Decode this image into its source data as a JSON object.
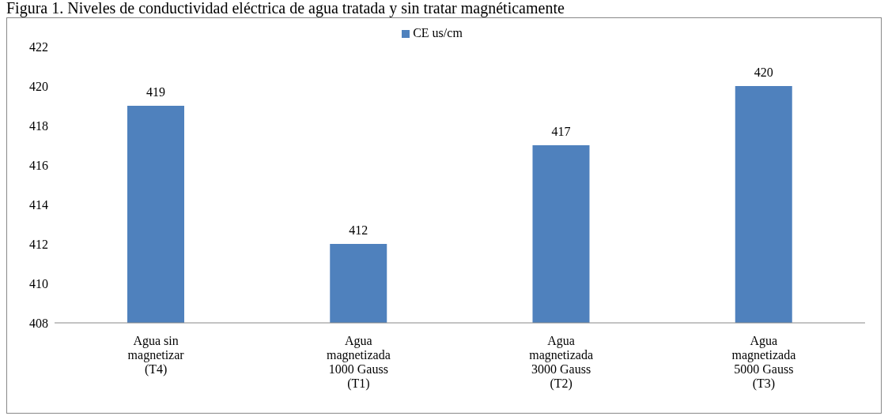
{
  "chart_data": {
    "type": "bar",
    "title": "Figura 1. Niveles de conductividad eléctrica de agua tratada y sin tratar magnéticamente",
    "categories": [
      "Agua sin magnetizar (T4)",
      "Agua magnetizada 1000 Gauss (T1)",
      "Agua magnetizada 3000 Gauss (T2)",
      "Agua magnetizada 5000 Gauss (T3)"
    ],
    "series": [
      {
        "name": "CE us/cm",
        "color": "#4f81bd",
        "values": [
          419,
          412,
          417,
          420
        ]
      }
    ],
    "ylim": [
      408,
      422
    ],
    "yticks": [
      408,
      410,
      412,
      414,
      416,
      418,
      420,
      422
    ],
    "data_labels": true,
    "legend": "top",
    "grid": false
  }
}
